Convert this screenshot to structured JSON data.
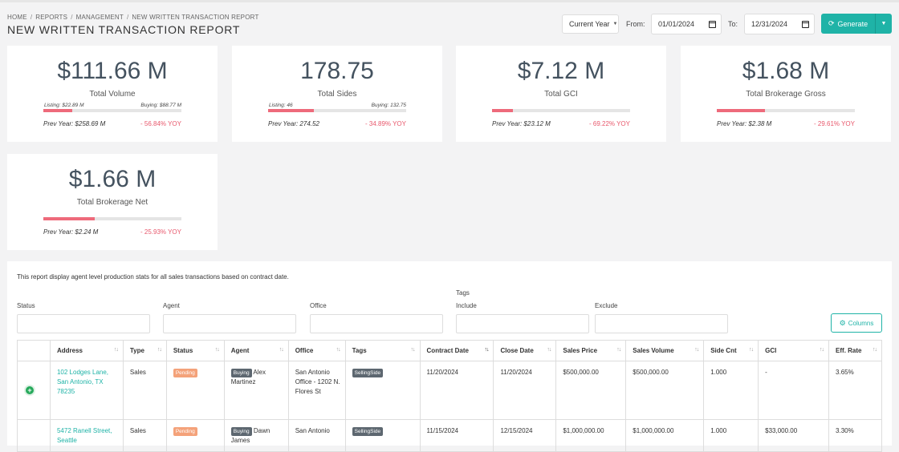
{
  "breadcrumb": [
    "HOME",
    "REPORTS",
    "MANAGEMENT",
    "NEW WRITTEN TRANSACTION REPORT"
  ],
  "page_title": "NEW WRITTEN TRANSACTION REPORT",
  "controls": {
    "period": "Current Year",
    "from_label": "From:",
    "from_value": "01/01/2024",
    "to_label": "To:",
    "to_value": "12/31/2024",
    "generate_label": "Generate"
  },
  "cards": [
    {
      "value": "$111.66 M",
      "caption": "Total Volume",
      "left_label": "Listing: $22.89 M",
      "right_label": "Buying: $88.77 M",
      "progress": 0.21,
      "prev": "Prev Year: $258.69 M",
      "yoy": "- 56.84% YOY"
    },
    {
      "value": "178.75",
      "caption": "Total Sides",
      "left_label": "Listing: 46",
      "right_label": "Buying: 132.75",
      "progress": 0.33,
      "prev": "Prev Year: 274.52",
      "yoy": "- 34.89% YOY"
    },
    {
      "value": "$7.12 M",
      "caption": "Total GCI",
      "left_label": "",
      "right_label": "",
      "progress": 0.15,
      "prev": "Prev Year: $23.12 M",
      "yoy": "- 69.22% YOY"
    },
    {
      "value": "$1.68 M",
      "caption": "Total Brokerage Gross",
      "left_label": "",
      "right_label": "",
      "progress": 0.35,
      "prev": "Prev Year: $2.38 M",
      "yoy": "- 29.61% YOY"
    },
    {
      "value": "$1.66 M",
      "caption": "Total Brokerage Net",
      "left_label": "",
      "right_label": "",
      "progress": 0.37,
      "prev": "Prev Year: $2.24 M",
      "yoy": "- 25.93% YOY"
    }
  ],
  "report": {
    "description": "This report display agent level production stats for all sales transactions based on contract date.",
    "filters": {
      "status": "Status",
      "agent": "Agent",
      "office": "Office",
      "tags": "Tags",
      "include": "Include",
      "exclude": "Exclude"
    },
    "columns_button": "Columns",
    "headers": [
      "",
      "Address",
      "Type",
      "Status",
      "Agent",
      "Office",
      "Tags",
      "Contract Date",
      "Close Date",
      "Sales Price",
      "Sales Volume",
      "Side Cnt",
      "GCI",
      "Eff. Rate"
    ],
    "rows": [
      {
        "address": "102 Lodges Lane, San Antonio, TX 78235",
        "type": "Sales",
        "status": "Pending",
        "agent_badge": "Buying",
        "agent": "Alex Martinez",
        "office": "San Antonio Office - 1202 N. Flores St",
        "tag": "SellingSide",
        "contract_date": "11/20/2024",
        "close_date": "11/20/2024",
        "sales_price": "$500,000.00",
        "sales_volume": "$500,000.00",
        "side_cnt": "1.000",
        "gci": "-",
        "eff_rate": "3.65%"
      },
      {
        "address": "5472 Ranell Street, Seattle",
        "type": "Sales",
        "status": "Pending",
        "agent_badge": "Buying",
        "agent": "Dawn James",
        "office": "San Antonio",
        "tag": "SellingSide",
        "contract_date": "11/15/2024",
        "close_date": "12/15/2024",
        "sales_price": "$1,000,000.00",
        "sales_volume": "$1,000,000.00",
        "side_cnt": "1.000",
        "gci": "$33,000.00",
        "eff_rate": "3.30%"
      }
    ]
  },
  "colors": {
    "accent": "#1fb3a7",
    "progress": "#ee6a7b",
    "yoy": "#e8586c",
    "pending": "#f4a27a",
    "badge": "#5d6770"
  }
}
